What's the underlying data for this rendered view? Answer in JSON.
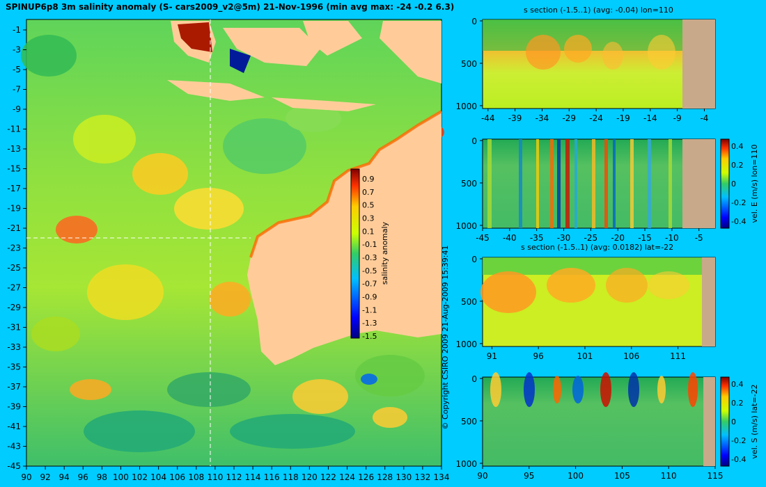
{
  "title": "SPINUP6p8 3m salinity anomaly (S- cars2009_v2@5m) 21-Nov-1996 (min avg max: -24 -0.2 6.3)",
  "copyright": "© Copyright CSIRO 2009   21-Aug-2009 15:39:41",
  "map": {
    "lon_ticks": [
      "90",
      "92",
      "94",
      "96",
      "98",
      "100",
      "102",
      "104",
      "106",
      "108",
      "110",
      "112",
      "114",
      "116",
      "118",
      "120",
      "122",
      "124",
      "126",
      "128",
      "130",
      "132",
      "134"
    ],
    "lat_ticks": [
      "-1",
      "-3",
      "-5",
      "-7",
      "-9",
      "-11",
      "-13",
      "-15",
      "-17",
      "-19",
      "-21",
      "-23",
      "-25",
      "-27",
      "-29",
      "-31",
      "-33",
      "-35",
      "-37",
      "-39",
      "-41",
      "-43",
      "-45"
    ],
    "colorbar": {
      "label": "salinity anomaly",
      "ticks": [
        "0.9",
        "0.7",
        "0.5",
        "0.3",
        "0.1",
        "-0.1",
        "-0.3",
        "-0.5",
        "-0.7",
        "-0.9",
        "-1.1",
        "-1.3",
        "-1.5"
      ]
    }
  },
  "panels": [
    {
      "title": "s section (-1.5..1) (avg: -0.04) lon=110",
      "x_ticks": [
        "-44",
        "-39",
        "-34",
        "-29",
        "-24",
        "-19",
        "-14",
        "-9",
        "-4"
      ],
      "y_ticks": [
        "0",
        "500",
        "1000"
      ],
      "side_label": ""
    },
    {
      "title": "",
      "x_ticks": [
        "-45",
        "-40",
        "-35",
        "-30",
        "-25",
        "-20",
        "-15",
        "-10",
        "-5"
      ],
      "y_ticks": [
        "0",
        "500",
        "1000"
      ],
      "side_label": "vel. E (m/s) lon=110",
      "cb_ticks": [
        "0.4",
        "0.2",
        "0",
        "-0.2",
        "-0.4"
      ]
    },
    {
      "title": "s section (-1.5..1) (avg: 0.0182) lat=-22",
      "x_ticks": [
        "91",
        "96",
        "101",
        "106",
        "111"
      ],
      "y_ticks": [
        "0",
        "500",
        "1000"
      ],
      "side_label": ""
    },
    {
      "title": "",
      "x_ticks": [
        "90",
        "95",
        "100",
        "105",
        "110",
        "115"
      ],
      "y_ticks": [
        "0",
        "500",
        "1000"
      ],
      "side_label": "vel. S (m/s) lat=-22",
      "cb_ticks": [
        "0.4",
        "0.2",
        "0",
        "-0.2",
        "-0.4"
      ]
    }
  ],
  "colors": {
    "background": "#00ccff",
    "land": "#ffcc99",
    "section_land": "#c8a98a",
    "ocean_base": "#66cc33"
  }
}
